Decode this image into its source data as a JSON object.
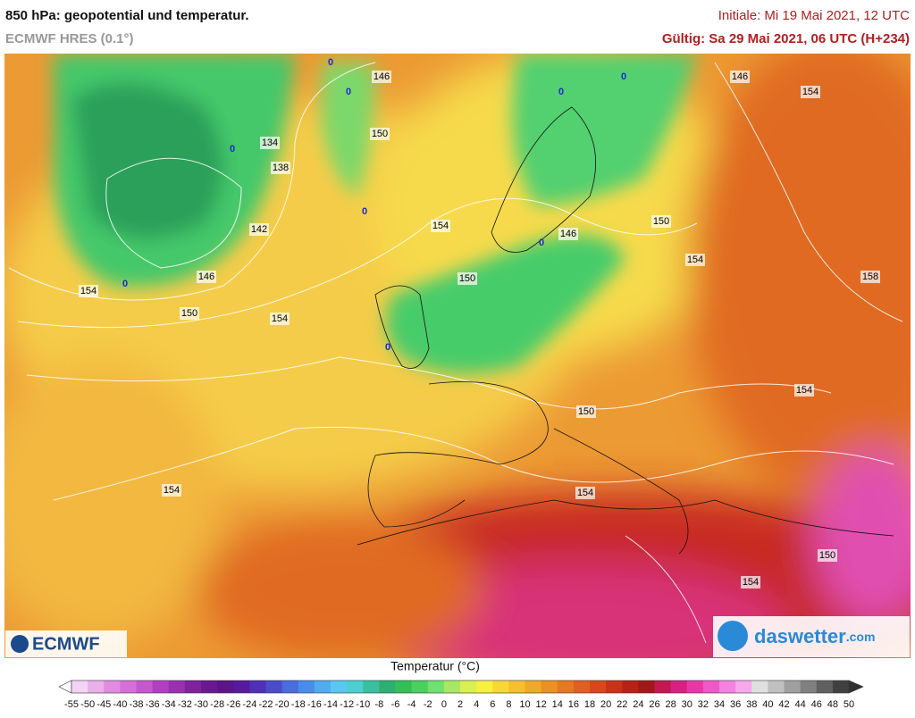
{
  "header": {
    "title": "850 hPa: geopotential und temperatur.",
    "model": "ECMWF HRES (0.1°)",
    "initial": "Initiale: Mi 19 Mai 2021, 12 UTC",
    "valid": "Gültig: Sa 29 Mai 2021, 06 UTC (H+234)"
  },
  "map": {
    "contour_labels": [
      "146",
      "146",
      "154",
      "134",
      "150",
      "138",
      "142",
      "154",
      "146",
      "150",
      "154",
      "146",
      "154",
      "150",
      "150",
      "154",
      "158",
      "154",
      "150",
      "154",
      "154",
      "150",
      "154"
    ],
    "low_markers": [
      "0",
      "0",
      "0",
      "0",
      "0",
      "0",
      "0",
      "0",
      "0"
    ]
  },
  "logos": {
    "left": "ECMWF",
    "right": "daswetter",
    "right_suffix": ".com"
  },
  "colorbar": {
    "title": "Temperatur (°C)",
    "ticks": [
      -55,
      -50,
      -45,
      -40,
      -38,
      -36,
      -34,
      -32,
      -30,
      -28,
      -26,
      -24,
      -22,
      -20,
      -18,
      -16,
      -14,
      -12,
      -10,
      -8,
      -6,
      -4,
      -2,
      0,
      2,
      4,
      6,
      8,
      10,
      12,
      14,
      16,
      18,
      20,
      22,
      24,
      26,
      28,
      30,
      32,
      34,
      36,
      38,
      40,
      42,
      44,
      46,
      48,
      50
    ],
    "colors": [
      "#f4d4f4",
      "#eab0ea",
      "#e08ce0",
      "#d470d8",
      "#c458cc",
      "#b040c0",
      "#9830b0",
      "#7e22a0",
      "#6a1890",
      "#5c1488",
      "#561aa0",
      "#5030b8",
      "#4a4ccc",
      "#4a6ce0",
      "#4a8cec",
      "#50acf0",
      "#58c8f0",
      "#4ad0d0",
      "#38c0a0",
      "#2cb070",
      "#30c058",
      "#48d060",
      "#70e070",
      "#a8e860",
      "#d8f050",
      "#f8f040",
      "#f8d838",
      "#f4c030",
      "#f0a828",
      "#ec9020",
      "#e67820",
      "#e06020",
      "#d84818",
      "#c83218",
      "#b82018",
      "#a01818",
      "#c01850",
      "#d82080",
      "#e838a8",
      "#f058c8",
      "#f880e0",
      "#f8a8ec",
      "#e0e0e0",
      "#c0c0c0",
      "#a0a0a0",
      "#808080",
      "#606060",
      "#404040"
    ],
    "low_end_color": "#ffffff",
    "high_end_color": "#303030"
  }
}
